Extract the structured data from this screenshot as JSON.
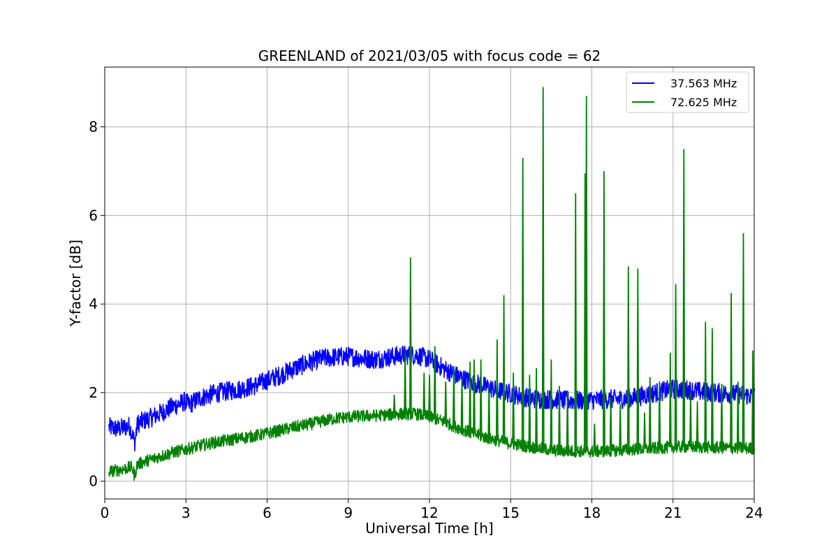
{
  "chart_data": {
    "type": "line",
    "title": "GREENLAND of 2021/03/05 with focus code = 62",
    "xlabel": "Universal Time [h]",
    "ylabel": "Y-factor [dB]",
    "xlim": [
      0,
      24
    ],
    "ylim": [
      -0.4,
      9.35
    ],
    "xticks": [
      0,
      3,
      6,
      9,
      12,
      15,
      18,
      21,
      24
    ],
    "yticks": [
      0,
      2,
      4,
      6,
      8
    ],
    "grid": true,
    "legend_position": "top-right",
    "series": [
      {
        "name": "37.563 MHz",
        "color": "#0000ff",
        "noise_amplitude": 0.22,
        "x": [
          0.15,
          0.5,
          0.9,
          1.0,
          1.1,
          1.2,
          1.5,
          2.0,
          2.5,
          2.95,
          3.1,
          3.5,
          4.0,
          4.5,
          5.0,
          5.5,
          6.0,
          6.5,
          7.0,
          7.5,
          8.0,
          8.5,
          9.0,
          9.5,
          10.0,
          10.5,
          11.0,
          11.5,
          12.0,
          12.5,
          13.0,
          13.5,
          14.0,
          14.5,
          15.0,
          15.5,
          16.0,
          16.5,
          17.0,
          17.5,
          18.0,
          18.5,
          19.0,
          19.5,
          20.0,
          20.5,
          21.0,
          21.5,
          22.0,
          22.5,
          23.0,
          23.5,
          24.0
        ],
        "y": [
          1.22,
          1.18,
          1.25,
          1.1,
          0.85,
          1.3,
          1.38,
          1.52,
          1.68,
          1.8,
          1.72,
          1.88,
          1.97,
          2.03,
          2.08,
          2.15,
          2.28,
          2.4,
          2.55,
          2.67,
          2.77,
          2.8,
          2.82,
          2.78,
          2.75,
          2.8,
          2.85,
          2.85,
          2.75,
          2.55,
          2.38,
          2.25,
          2.15,
          2.05,
          1.98,
          1.9,
          1.85,
          1.85,
          1.82,
          1.82,
          1.83,
          1.85,
          1.85,
          1.88,
          1.95,
          2.02,
          2.08,
          2.07,
          2.02,
          2.0,
          1.98,
          1.95,
          1.92
        ],
        "spikes": []
      },
      {
        "name": "72.625 MHz",
        "color": "#008000",
        "noise_amplitude": 0.14,
        "x": [
          0.15,
          0.5,
          1.0,
          1.1,
          1.2,
          1.5,
          2.0,
          2.5,
          3.0,
          3.5,
          4.0,
          4.5,
          5.0,
          5.5,
          6.0,
          6.5,
          7.0,
          7.5,
          8.0,
          8.5,
          9.0,
          9.5,
          10.0,
          10.5,
          11.0,
          11.5,
          12.0,
          12.5,
          13.0,
          13.5,
          14.0,
          14.5,
          15.0,
          15.5,
          16.0,
          16.5,
          17.0,
          17.5,
          18.0,
          18.5,
          19.0,
          19.5,
          20.0,
          20.5,
          21.0,
          21.5,
          22.0,
          22.5,
          23.0,
          23.5,
          24.0
        ],
        "y": [
          0.22,
          0.25,
          0.32,
          0.12,
          0.38,
          0.45,
          0.55,
          0.65,
          0.72,
          0.8,
          0.87,
          0.92,
          0.97,
          1.02,
          1.08,
          1.15,
          1.22,
          1.28,
          1.35,
          1.42,
          1.45,
          1.47,
          1.48,
          1.5,
          1.52,
          1.52,
          1.45,
          1.35,
          1.22,
          1.1,
          1.0,
          0.92,
          0.85,
          0.8,
          0.75,
          0.7,
          0.68,
          0.68,
          0.67,
          0.68,
          0.7,
          0.72,
          0.73,
          0.75,
          0.77,
          0.78,
          0.77,
          0.76,
          0.75,
          0.75,
          0.74
        ],
        "spikes": [
          [
            10.7,
            1.95
          ],
          [
            11.1,
            2.9
          ],
          [
            11.3,
            5.05
          ],
          [
            11.8,
            2.45
          ],
          [
            12.0,
            2.4
          ],
          [
            12.2,
            3.05
          ],
          [
            12.6,
            2.25
          ],
          [
            12.9,
            2.6
          ],
          [
            13.2,
            2.3
          ],
          [
            13.5,
            2.7
          ],
          [
            13.65,
            2.75
          ],
          [
            13.9,
            2.75
          ],
          [
            14.2,
            2.15
          ],
          [
            14.5,
            3.2
          ],
          [
            14.75,
            4.2
          ],
          [
            15.1,
            2.45
          ],
          [
            15.45,
            7.3
          ],
          [
            15.7,
            2.4
          ],
          [
            15.95,
            2.55
          ],
          [
            16.2,
            8.9
          ],
          [
            16.5,
            2.75
          ],
          [
            16.8,
            2.15
          ],
          [
            17.1,
            2.05
          ],
          [
            17.4,
            6.5
          ],
          [
            17.75,
            6.95
          ],
          [
            17.8,
            8.7
          ],
          [
            18.1,
            1.3
          ],
          [
            18.45,
            7.0
          ],
          [
            18.7,
            1.9
          ],
          [
            19.05,
            1.75
          ],
          [
            19.35,
            4.85
          ],
          [
            19.7,
            4.8
          ],
          [
            19.95,
            1.55
          ],
          [
            20.15,
            2.35
          ],
          [
            20.5,
            2.25
          ],
          [
            20.9,
            2.9
          ],
          [
            21.1,
            4.45
          ],
          [
            21.4,
            7.5
          ],
          [
            21.65,
            2.0
          ],
          [
            21.9,
            1.8
          ],
          [
            22.2,
            3.6
          ],
          [
            22.45,
            3.45
          ],
          [
            22.8,
            2.2
          ],
          [
            23.15,
            4.25
          ],
          [
            23.4,
            2.25
          ],
          [
            23.6,
            5.6
          ],
          [
            23.95,
            2.95
          ]
        ]
      }
    ]
  }
}
